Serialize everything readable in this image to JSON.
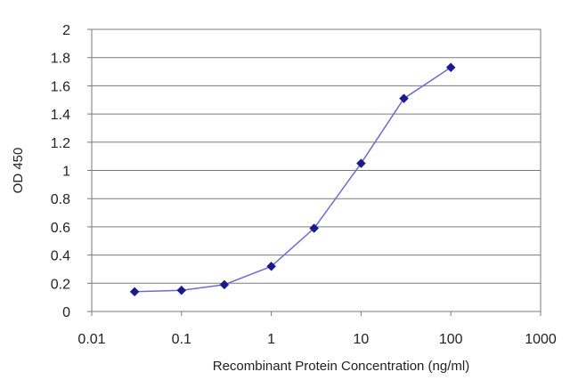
{
  "chart_data": {
    "type": "line",
    "xscale": "log",
    "xlim": [
      0.01,
      1000
    ],
    "ylim": [
      0,
      2
    ],
    "x_ticks": [
      0.01,
      0.1,
      1,
      10,
      100,
      1000
    ],
    "x_tick_labels": [
      "0.01",
      "0.1",
      "1",
      "10",
      "100",
      "1000"
    ],
    "y_ticks": [
      0,
      0.2,
      0.4,
      0.6,
      0.8,
      1,
      1.2,
      1.4,
      1.6,
      1.8,
      2
    ],
    "y_tick_labels": [
      "0",
      "0.2",
      "0.4",
      "0.6",
      "0.8",
      "1",
      "1.2",
      "1.4",
      "1.6",
      "1.8",
      "2"
    ],
    "xlabel": "Recombinant Protein Concentration (ng/ml)",
    "ylabel": "OD 450",
    "grid": "horizontal",
    "series": [
      {
        "x": [
          0.03,
          0.1,
          0.3,
          1,
          3,
          10,
          30,
          100
        ],
        "y": [
          0.14,
          0.15,
          0.19,
          0.32,
          0.59,
          1.05,
          1.51,
          1.73
        ],
        "color": "#1a1a8c",
        "marker": "diamond"
      }
    ],
    "colors": {
      "line": "#6c6cd0",
      "marker": "#1a1a8c",
      "grid": "#7a7a7a",
      "border": "#7a7a7a"
    }
  }
}
